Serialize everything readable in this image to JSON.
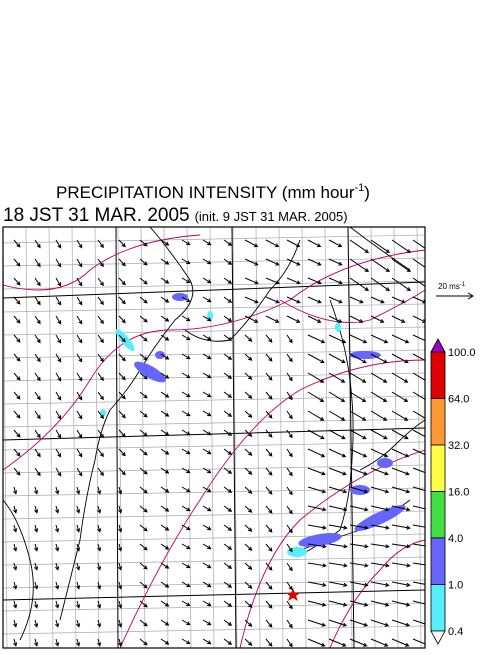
{
  "header": {
    "title": "PRECIPITATION INTENSITY (mm hour",
    "title_exponent": "-1",
    "title_close": ")",
    "valid_time": "18 JST 31 MAR. 2005",
    "init_time": "(init. 9 JST 31 MAR. 2005)"
  },
  "wind_scale": {
    "label": "20 ms",
    "exponent": "-1"
  },
  "legend": {
    "labels": [
      "100.0",
      "64.0",
      "32.0",
      "16.0",
      "4.0",
      "1.0",
      "0.4"
    ],
    "colors": [
      "#a000c8",
      "#e00000",
      "#ff9933",
      "#ffff44",
      "#44dd44",
      "#6666ff",
      "#55eeff",
      "#ffffff"
    ]
  }
}
